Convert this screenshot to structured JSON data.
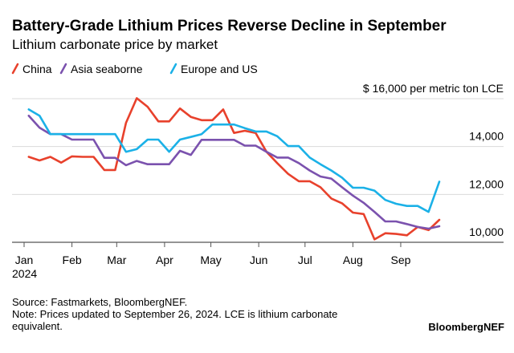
{
  "chart_data": {
    "type": "line",
    "title": "Battery-Grade Lithium Prices Reverse Decline in September",
    "subtitle": "Lithium carbonate price by market",
    "unit_label": "$ 16,000 per metric ton LCE",
    "ylim": [
      10000,
      16000
    ],
    "y_ticks": [
      10000,
      12000,
      14000,
      16000
    ],
    "y_tick_labels": [
      "10,000",
      "12,000",
      "14,000",
      "$ 16,000 per metric ton LCE"
    ],
    "x_ticks": [
      "2024-01-01",
      "2024-02-01",
      "2024-03-01",
      "2024-04-01",
      "2024-05-01",
      "2024-06-01",
      "2024-07-01",
      "2024-08-01",
      "2024-09-01"
    ],
    "x_tick_labels": [
      "Jan",
      "Feb",
      "Mar",
      "Apr",
      "May",
      "Jun",
      "Jul",
      "Aug",
      "Sep"
    ],
    "x_year_label": "2024",
    "grid": true,
    "legend_position": "top-left",
    "x": [
      "2024-01-04",
      "2024-01-11",
      "2024-01-18",
      "2024-01-25",
      "2024-02-01",
      "2024-02-08",
      "2024-02-15",
      "2024-02-22",
      "2024-02-29",
      "2024-03-07",
      "2024-03-14",
      "2024-03-21",
      "2024-03-28",
      "2024-04-04",
      "2024-04-11",
      "2024-04-18",
      "2024-04-25",
      "2024-05-02",
      "2024-05-09",
      "2024-05-16",
      "2024-05-23",
      "2024-05-30",
      "2024-06-06",
      "2024-06-13",
      "2024-06-20",
      "2024-06-27",
      "2024-07-04",
      "2024-07-11",
      "2024-07-18",
      "2024-07-25",
      "2024-08-01",
      "2024-08-08",
      "2024-08-15",
      "2024-08-22",
      "2024-08-29",
      "2024-09-05",
      "2024-09-12",
      "2024-09-19",
      "2024-09-26"
    ],
    "series": [
      {
        "name": "China",
        "color": "#e8412c",
        "values": [
          13570,
          13420,
          13570,
          13330,
          13590,
          13570,
          13570,
          13020,
          13020,
          14990,
          16020,
          15660,
          15050,
          15050,
          15590,
          15240,
          15100,
          15100,
          15550,
          14570,
          14660,
          14570,
          13780,
          13310,
          12860,
          12550,
          12550,
          12300,
          11830,
          11630,
          11240,
          11180,
          10120,
          10380,
          10350,
          10290,
          10640,
          10510,
          10940
        ]
      },
      {
        "name": "Asia seaborne",
        "color": "#7b52ae",
        "values": [
          15290,
          14790,
          14520,
          14520,
          14290,
          14290,
          14290,
          13530,
          13530,
          13220,
          13400,
          13260,
          13260,
          13260,
          13820,
          13650,
          14280,
          14280,
          14280,
          14280,
          14040,
          14040,
          13780,
          13540,
          13540,
          13310,
          13000,
          12750,
          12660,
          12300,
          11950,
          11650,
          11270,
          10870,
          10870,
          10760,
          10640,
          10570,
          10670
        ]
      },
      {
        "name": "Europe and US",
        "color": "#1bb1e7",
        "values": [
          15550,
          15290,
          14520,
          14520,
          14520,
          14520,
          14520,
          14520,
          14520,
          13780,
          13890,
          14290,
          14290,
          13780,
          14290,
          14400,
          14520,
          14920,
          14920,
          14920,
          14770,
          14630,
          14630,
          14430,
          14020,
          14020,
          13540,
          13260,
          13000,
          12700,
          12280,
          12280,
          12160,
          11770,
          11610,
          11520,
          11520,
          11270,
          12530
        ]
      }
    ]
  },
  "footer": {
    "source": "Source: Fastmarkets, BloombergNEF.",
    "note_line1": "Note: Prices updated to September 26, 2024. LCE is lithium carbonate",
    "note_line2": "equivalent.",
    "brand": "BloombergNEF"
  }
}
